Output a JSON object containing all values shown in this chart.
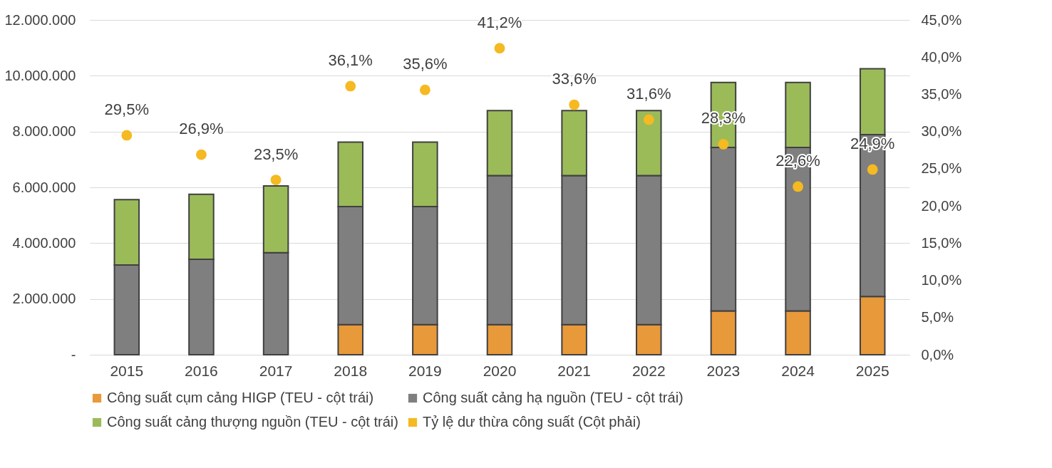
{
  "chart_data": {
    "type": "bar",
    "stacked": true,
    "categories": [
      "2015",
      "2016",
      "2017",
      "2018",
      "2019",
      "2020",
      "2021",
      "2022",
      "2023",
      "2024",
      "2025"
    ],
    "series": [
      {
        "name": "Công suất cụm cảng HIGP (TEU - cột trái)",
        "color": "#e8993a",
        "values": [
          null,
          null,
          null,
          1080000,
          1080000,
          1080000,
          1080000,
          1080000,
          1570000,
          1570000,
          2090000
        ]
      },
      {
        "name": "Công suất cảng hạ nguồn (TEU - cột trái)",
        "color": "#7f7f7f",
        "values": [
          3220000,
          3420000,
          3660000,
          4230000,
          4230000,
          5340000,
          5340000,
          5340000,
          5860000,
          5860000,
          5800000
        ]
      },
      {
        "name": "Công suất cảng thượng nguồn (TEU - cột trái)",
        "color": "#9bbb59",
        "values": [
          2340000,
          2330000,
          2390000,
          2310000,
          2310000,
          2330000,
          2330000,
          2330000,
          2330000,
          2330000,
          2360000
        ]
      },
      {
        "name": "Tỷ lệ dư thừa công suất (Cột phải)",
        "type": "scatter",
        "axis": "y2",
        "color": "#f5b921",
        "values": [
          29.5,
          26.9,
          23.5,
          36.1,
          35.6,
          41.2,
          33.6,
          31.6,
          28.3,
          22.6,
          24.9
        ],
        "value_labels": [
          "29,5%",
          "26,9%",
          "23,5%",
          "36,1%",
          "35,6%",
          "41,2%",
          "33,6%",
          "31,6%",
          "28,3%",
          "22,6%",
          "24,9%"
        ]
      }
    ],
    "ylim": [
      0,
      12000000
    ],
    "yticks": [
      {
        "value": 0,
        "label": "-"
      },
      {
        "value": 2000000,
        "label": "2.000.000"
      },
      {
        "value": 4000000,
        "label": "4.000.000"
      },
      {
        "value": 6000000,
        "label": "6.000.000"
      },
      {
        "value": 8000000,
        "label": "8.000.000"
      },
      {
        "value": 10000000,
        "label": "10.000.000"
      },
      {
        "value": 12000000,
        "label": "12.000.000"
      }
    ],
    "y2lim": [
      0,
      45
    ],
    "y2ticks": [
      {
        "value": 0,
        "label": "0,0%"
      },
      {
        "value": 5,
        "label": "5,0%"
      },
      {
        "value": 10,
        "label": "10,0%"
      },
      {
        "value": 15,
        "label": "15,0%"
      },
      {
        "value": 20,
        "label": "20,0%"
      },
      {
        "value": 25,
        "label": "25,0%"
      },
      {
        "value": 30,
        "label": "30,0%"
      },
      {
        "value": 35,
        "label": "35,0%"
      },
      {
        "value": 40,
        "label": "40,0%"
      },
      {
        "value": 45,
        "label": "45,0%"
      }
    ],
    "grid": "y",
    "legend": "bottom",
    "marker": "circle"
  }
}
